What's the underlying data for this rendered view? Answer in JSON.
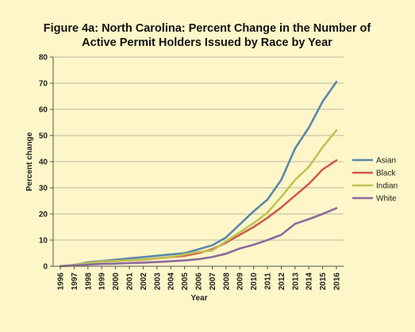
{
  "chart_data": {
    "type": "line",
    "title_line1": "Figure 4a: North Carolina: Percent Change in the Number of",
    "title_line2": "Active Permit Holders Issued by Race by Year",
    "xlabel": "Year",
    "ylabel": "Percent change",
    "ylim": [
      0,
      80
    ],
    "yticks": [
      0,
      10,
      20,
      30,
      40,
      50,
      60,
      70,
      80
    ],
    "xticks": [
      "1996",
      "1997",
      "1998",
      "1999",
      "2000",
      "2001",
      "2002",
      "2003",
      "2004",
      "2005",
      "2006",
      "2007",
      "2008",
      "2009",
      "2010",
      "2011",
      "2012",
      "2013",
      "2014",
      "2015",
      "2016"
    ],
    "grid": true,
    "legend_position": "right",
    "series": [
      {
        "name": "Asian",
        "color": "#5b87ad",
        "points": [
          [
            1996,
            0
          ],
          [
            1997,
            0.5
          ],
          [
            1998,
            1.5
          ],
          [
            1999,
            2
          ],
          [
            2000,
            2.5
          ],
          [
            2001,
            3
          ],
          [
            2002,
            3.5
          ],
          [
            2003,
            4
          ],
          [
            2004,
            4.5
          ],
          [
            2005,
            5
          ],
          [
            2006,
            6.5
          ],
          [
            2007,
            8
          ],
          [
            2008,
            11
          ],
          [
            2009,
            16
          ],
          [
            2010,
            21
          ],
          [
            2011,
            25.5
          ],
          [
            2012,
            33
          ],
          [
            2013,
            45
          ],
          [
            2014,
            53
          ],
          [
            2015,
            63
          ],
          [
            2016,
            70.5
          ]
        ]
      },
      {
        "name": "Black",
        "color": "#d05a4a",
        "points": [
          [
            1996,
            0
          ],
          [
            1997,
            0.5
          ],
          [
            1998,
            1.2
          ],
          [
            1999,
            1.8
          ],
          [
            2000,
            2
          ],
          [
            2001,
            2.3
          ],
          [
            2002,
            2.5
          ],
          [
            2003,
            3
          ],
          [
            2004,
            3.5
          ],
          [
            2005,
            4
          ],
          [
            2006,
            5
          ],
          [
            2007,
            6.5
          ],
          [
            2008,
            9
          ],
          [
            2009,
            12
          ],
          [
            2010,
            15
          ],
          [
            2011,
            18.5
          ],
          [
            2012,
            22.5
          ],
          [
            2013,
            27
          ],
          [
            2014,
            31.5
          ],
          [
            2015,
            37
          ],
          [
            2016,
            40.5
          ]
        ]
      },
      {
        "name": "Indian",
        "color": "#bdc453",
        "points": [
          [
            1996,
            0
          ],
          [
            1997,
            0.5
          ],
          [
            1998,
            1.2
          ],
          [
            1999,
            1.8
          ],
          [
            2000,
            2
          ],
          [
            2001,
            2.3
          ],
          [
            2002,
            2.6
          ],
          [
            2003,
            3
          ],
          [
            2004,
            3.5
          ],
          [
            2005,
            4.5
          ],
          [
            2006,
            5.5
          ],
          [
            2007,
            6
          ],
          [
            2008,
            9.5
          ],
          [
            2009,
            13
          ],
          [
            2010,
            16.5
          ],
          [
            2011,
            20.5
          ],
          [
            2012,
            26.5
          ],
          [
            2013,
            33
          ],
          [
            2014,
            38
          ],
          [
            2015,
            45.5
          ],
          [
            2016,
            52
          ]
        ]
      },
      {
        "name": "White",
        "color": "#8c6aa0",
        "points": [
          [
            1996,
            0
          ],
          [
            1997,
            0.3
          ],
          [
            1998,
            0.6
          ],
          [
            1999,
            0.9
          ],
          [
            2000,
            1
          ],
          [
            2001,
            1.2
          ],
          [
            2002,
            1.4
          ],
          [
            2003,
            1.6
          ],
          [
            2004,
            1.9
          ],
          [
            2005,
            2.2
          ],
          [
            2006,
            2.7
          ],
          [
            2007,
            3.5
          ],
          [
            2008,
            4.8
          ],
          [
            2009,
            6.8
          ],
          [
            2010,
            8.2
          ],
          [
            2011,
            10
          ],
          [
            2012,
            12
          ],
          [
            2013,
            16.2
          ],
          [
            2014,
            18
          ],
          [
            2015,
            20
          ],
          [
            2016,
            22.2
          ]
        ]
      }
    ]
  }
}
